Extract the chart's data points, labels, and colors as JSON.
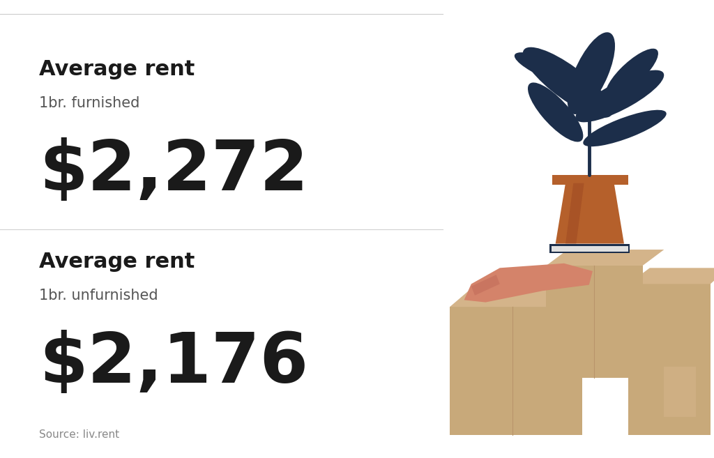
{
  "bg_color": "#ffffff",
  "divider_color": "#d0d0d0",
  "label_bold": "Average rent",
  "label_bold_fontsize": 22,
  "label_bold_color": "#1a1a1a",
  "furnished_sub": "1br. furnished",
  "furnished_value": "$2,272",
  "unfurnished_sub": "1br. unfurnished",
  "unfurnished_value": "$2,176",
  "sub_fontsize": 15,
  "sub_color": "#555555",
  "value_fontsize": 72,
  "value_color": "#1a1a1a",
  "source_text": "Source: liv.rent",
  "source_fontsize": 11,
  "source_color": "#888888",
  "top_border_color": "#cccccc",
  "section_divider_color": "#d0d0d0",
  "box_color": "#C8A97A",
  "box_light": "#D4B48A",
  "box_dark": "#B8956A",
  "plant_pot_color": "#B5602B",
  "plant_color": "#1C2E4A",
  "hand_color": "#D4836A",
  "book_color": "#1C2E4A"
}
